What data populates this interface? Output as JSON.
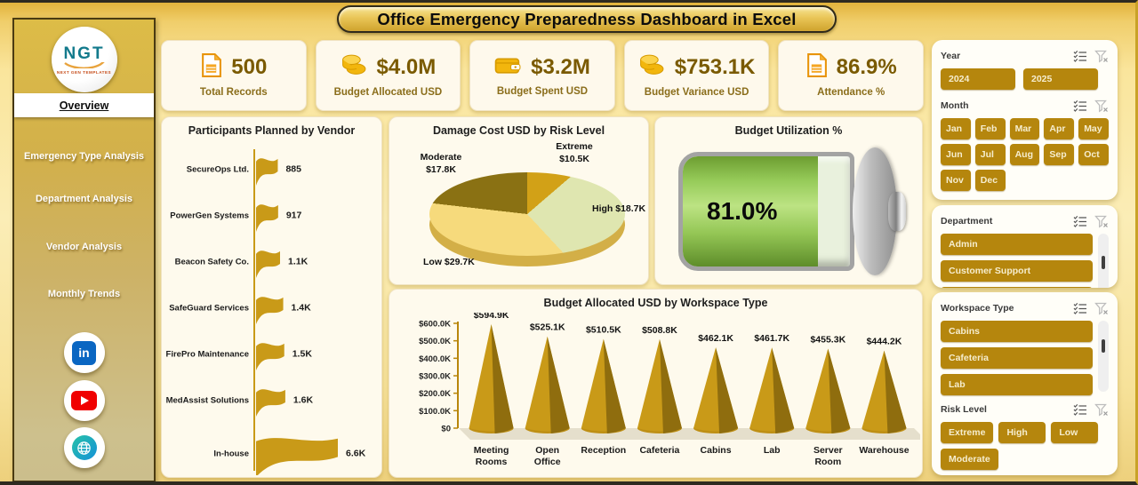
{
  "title": "Office Emergency Preparedness Dashboard in Excel",
  "sidebar": {
    "logo_text": "NGT",
    "logo_subtext": "NEXT GEN TEMPLATES",
    "nav": [
      {
        "label": "Overview",
        "active": true
      },
      {
        "label": "Emergency Type Analysis",
        "active": false
      },
      {
        "label": "Department Analysis",
        "active": false
      },
      {
        "label": "Vendor Analysis",
        "active": false
      },
      {
        "label": "Monthly Trends",
        "active": false
      }
    ],
    "social": [
      {
        "name": "linkedin",
        "glyph": "in"
      },
      {
        "name": "youtube",
        "glyph": ""
      },
      {
        "name": "website",
        "glyph": ""
      }
    ]
  },
  "kpis": [
    {
      "icon": "document-icon",
      "value": "500",
      "label": "Total Records"
    },
    {
      "icon": "coins-icon",
      "value": "$4.0M",
      "label": "Budget Allocated USD"
    },
    {
      "icon": "wallet-icon",
      "value": "$3.2M",
      "label": "Budget Spent USD"
    },
    {
      "icon": "coins-icon",
      "value": "$753.1K",
      "label": "Budget Variance USD"
    },
    {
      "icon": "document-icon",
      "value": "86.9%",
      "label": "Attendance %"
    }
  ],
  "chart_data": [
    {
      "type": "bar",
      "orientation": "horizontal",
      "bar_style": "flag",
      "title": "Participants Planned by Vendor",
      "categories": [
        "SecureOps Ltd.",
        "PowerGen Systems",
        "Beacon Safety Co.",
        "SafeGuard Services",
        "FirePro Maintenance",
        "MedAssist Solutions",
        "In-house"
      ],
      "values": [
        885,
        917,
        1100,
        1400,
        1500,
        1600,
        6600
      ],
      "labels": [
        "885",
        "917",
        "1.1K",
        "1.4K",
        "1.5K",
        "1.6K",
        "6.6K"
      ],
      "color": "#C99A18"
    },
    {
      "type": "pie",
      "title": "Damage Cost USD by Risk Level",
      "slices": [
        {
          "label": "Extreme",
          "value": 10500,
          "value_label": "$10.5K",
          "color": "#D2A117"
        },
        {
          "label": "High",
          "value": 18700,
          "value_label": "$18.7K",
          "color": "#DFE6B0"
        },
        {
          "label": "Low",
          "value": 29700,
          "value_label": "$29.7K",
          "color": "#F6DA7C"
        },
        {
          "label": "Moderate",
          "value": 17800,
          "value_label": "$17.8K",
          "color": "#8A7113"
        }
      ]
    },
    {
      "type": "gauge",
      "title": "Budget Utilization %",
      "percent": 81,
      "value_label": "81.0%"
    },
    {
      "type": "bar",
      "orientation": "vertical",
      "bar_style": "cone",
      "title": "Budget Allocated USD by Workspace Type",
      "categories": [
        "Meeting Rooms",
        "Open Office",
        "Reception",
        "Cafeteria",
        "Cabins",
        "Lab",
        "Server Room",
        "Warehouse"
      ],
      "values": [
        594900,
        525100,
        510500,
        508800,
        462100,
        461700,
        455300,
        444200
      ],
      "labels": [
        "$594.9K",
        "$525.1K",
        "$510.5K",
        "$508.8K",
        "$462.1K",
        "$461.7K",
        "$455.3K",
        "$444.2K"
      ],
      "ylim": [
        0,
        600000
      ],
      "yticks": [
        "$600.0K",
        "$500.0K",
        "$400.0K",
        "$300.0K",
        "$200.0K",
        "$100.0K",
        "$0"
      ],
      "color": "#C99A18",
      "shade_color": "#8F6D0E"
    }
  ],
  "slicers": [
    {
      "title": "Year",
      "layout": "row",
      "items": [
        "2024",
        "2025"
      ]
    },
    {
      "title": "Month",
      "layout": "grid",
      "items": [
        "Jan",
        "Feb",
        "Mar",
        "Apr",
        "May",
        "Jun",
        "Jul",
        "Aug",
        "Sep",
        "Oct",
        "Nov",
        "Dec"
      ]
    },
    {
      "title": "Department",
      "layout": "list",
      "items": [
        "Admin",
        "Customer Support"
      ],
      "partial_item": true,
      "scrollbar": true,
      "thumb_top": "38%"
    },
    {
      "title": "Workspace Type",
      "layout": "list",
      "items": [
        "Cabins",
        "Cafeteria",
        "Lab"
      ],
      "scrollbar": true,
      "thumb_top": "26%"
    },
    {
      "title": "Risk Level",
      "layout": "wrap",
      "items": [
        "Extreme",
        "High",
        "Low",
        "Moderate"
      ]
    }
  ],
  "colors": {
    "slicer_gold": "#B5860D",
    "chart_gold": "#C99A18",
    "chart_gold_dark": "#8F6D0E",
    "battery_green": "#8CC63E",
    "kpi_text": "#7A5A00"
  }
}
